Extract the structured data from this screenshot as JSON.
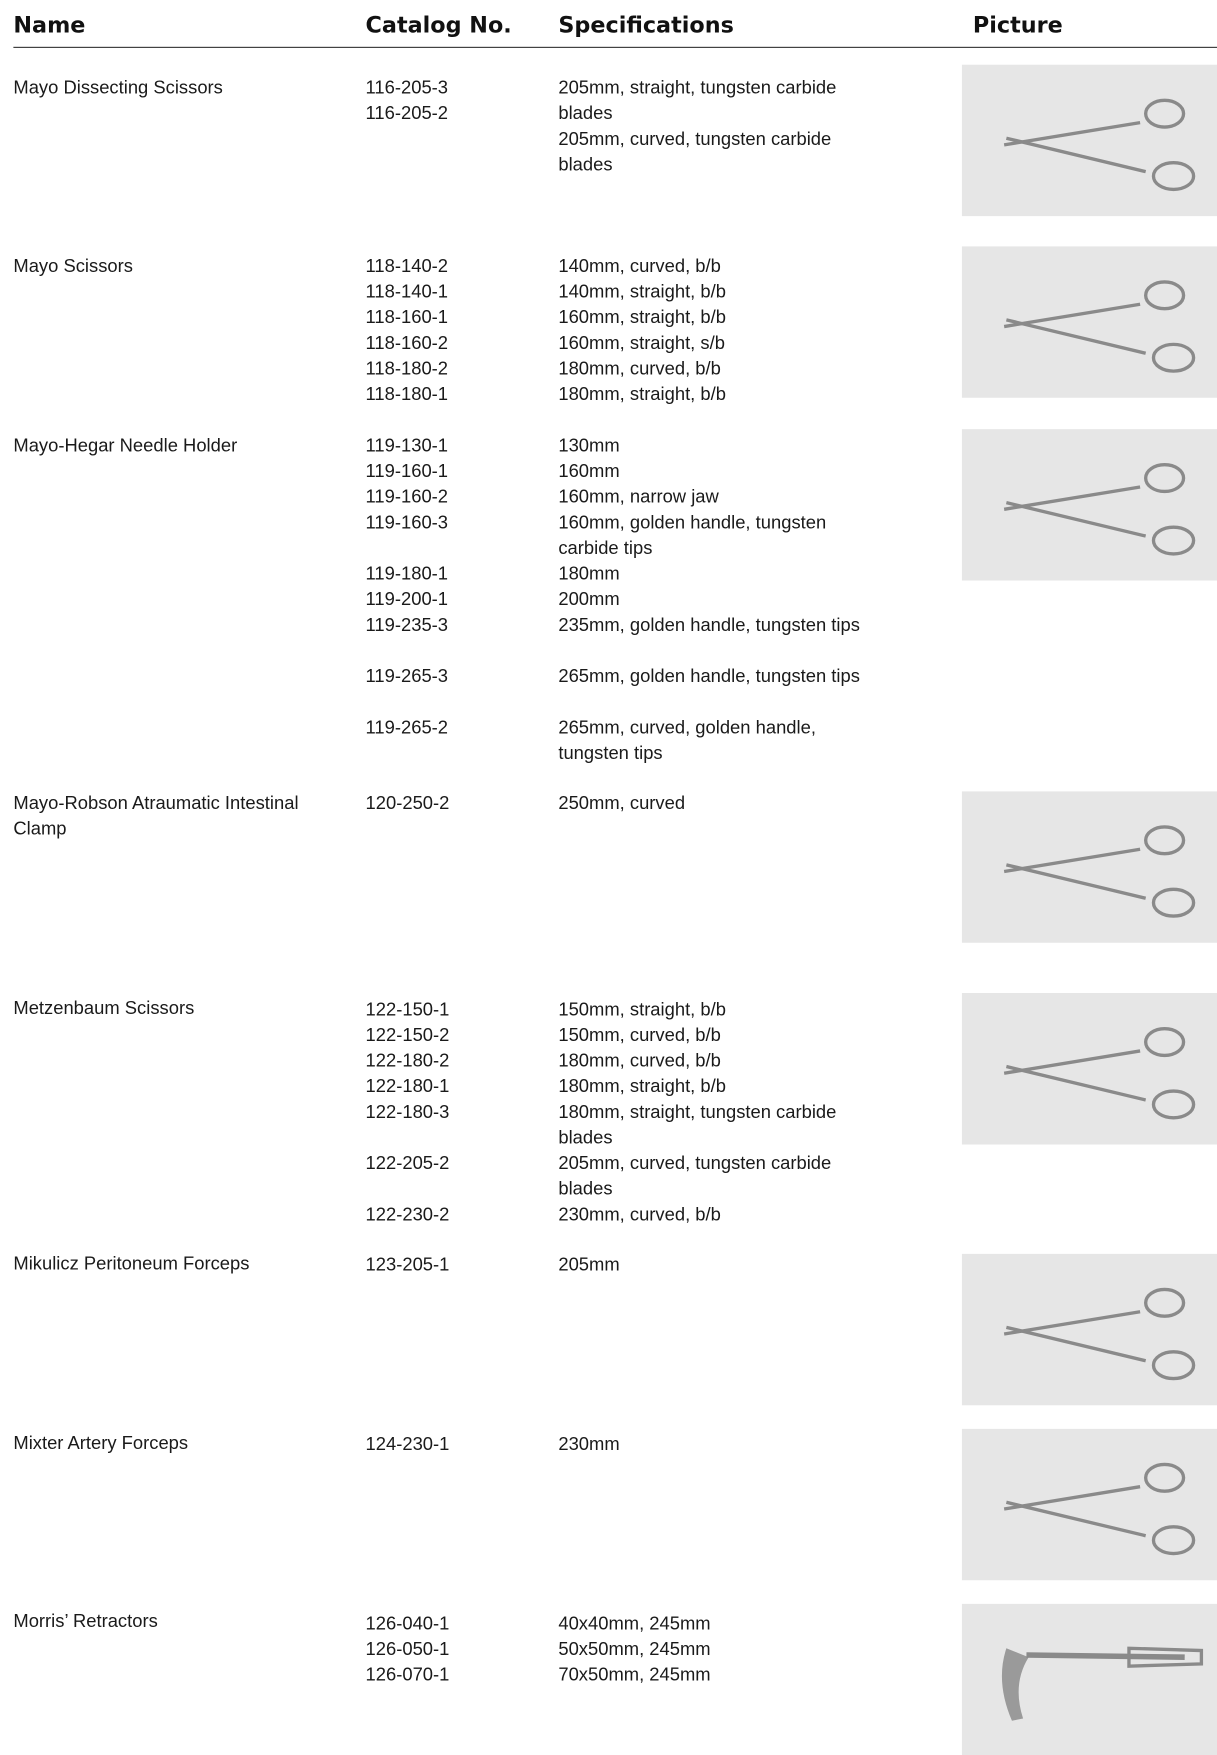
{
  "header": {
    "columns": [
      "Name",
      "Catalog No.",
      "Specifications",
      "Picture"
    ]
  },
  "table": {
    "rows": [
      {
        "name": "Mayo Dissecting Scissors",
        "catalog": [
          "116-205-3",
          "116-205-2"
        ],
        "specs": [
          "205mm, straight, tungsten carbide blades",
          "205mm, curved, tungsten carbide blades"
        ]
      },
      {
        "name": "Mayo Scissors",
        "catalog": [
          "118-140-2",
          "118-140-1",
          "118-160-1",
          "118-160-2",
          "118-180-2",
          "118-180-1"
        ],
        "specs": [
          "140mm, curved, b/b",
          "140mm, straight, b/b",
          "160mm, straight, b/b",
          "160mm, straight, s/b",
          "180mm, curved, b/b",
          "180mm, straight, b/b"
        ]
      },
      {
        "name": "Mayo-Hegar Needle Holder",
        "catalog": [
          "119-130-1",
          "119-160-1",
          "119-160-2",
          "119-160-3",
          "119-180-1",
          "119-200-1",
          "119-235-3",
          "119-265-3",
          "119-265-2"
        ],
        "specs": [
          "130mm",
          "160mm",
          "160mm, narrow jaw",
          "160mm, golden handle, tungsten carbide tips",
          "180mm",
          "200mm",
          "235mm, golden handle, tungsten tips",
          "265mm, golden handle, tungsten tips",
          "265mm, curved, golden handle, tungsten tips"
        ]
      },
      {
        "name": "Mayo-Robson Atraumatic Intestinal Clamp",
        "catalog": [
          "120-250-2"
        ],
        "specs": [
          "250mm, curved"
        ]
      },
      {
        "name": "Metzenbaum Scissors",
        "catalog": [
          "122-150-1",
          "122-150-2",
          "122-180-2",
          "122-180-1",
          "122-180-3",
          "122-205-2",
          "122-230-2"
        ],
        "specs": [
          "150mm, straight, b/b",
          "150mm, curved, b/b",
          "180mm, curved, b/b",
          "180mm, straight, b/b",
          "180mm, straight, tungsten carbide blades",
          "205mm, curved, tungsten carbide blades",
          "230mm, curved, b/b"
        ]
      },
      {
        "name": "Mikulicz Peritoneum Forceps",
        "catalog": [
          "123-205-1"
        ],
        "specs": [
          "205mm"
        ]
      },
      {
        "name": "Mixter Artery Forceps",
        "catalog": [
          "124-230-1"
        ],
        "specs": [
          "230mm"
        ]
      },
      {
        "name": "Morris’ Retractors",
        "catalog": [
          "126-040-1",
          "126-050-1",
          "126-070-1"
        ],
        "specs": [
          "40x40mm, 245mm",
          "50x50mm, 245mm",
          "70x50mm, 245mm"
        ]
      }
    ]
  }
}
